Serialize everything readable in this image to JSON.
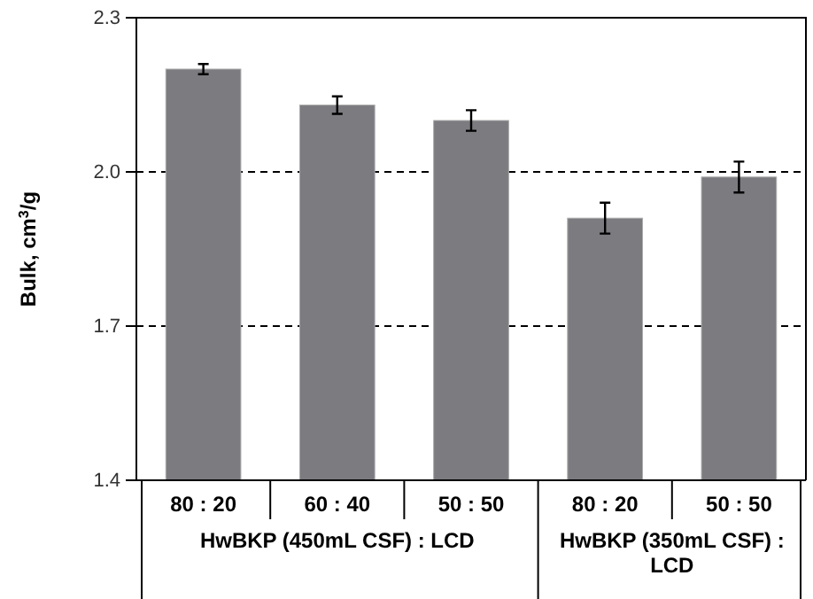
{
  "chart_data": {
    "type": "bar",
    "ylabel": "Bulk, cm$^{3}$/g",
    "categories": [
      "80 : 20",
      "60 : 40",
      "50 : 50",
      "80 : 20",
      "50 : 50"
    ],
    "values": [
      2.2,
      2.13,
      2.1,
      1.91,
      1.99
    ],
    "errors": [
      0.01,
      0.017,
      0.02,
      0.03,
      0.03
    ],
    "color": "#7b7b80",
    "ylim": [
      1.4,
      2.3
    ],
    "yticks": [
      1.4,
      1.7,
      {
        "value": 2,
        "label": "2.0"
      },
      2.3
    ],
    "grid": "y",
    "line_style": "dashed",
    "annotations": [
      "HwBKP (450mL CSF) : LCD",
      "HwBKP (350mL CSF) : LCD"
    ]
  }
}
